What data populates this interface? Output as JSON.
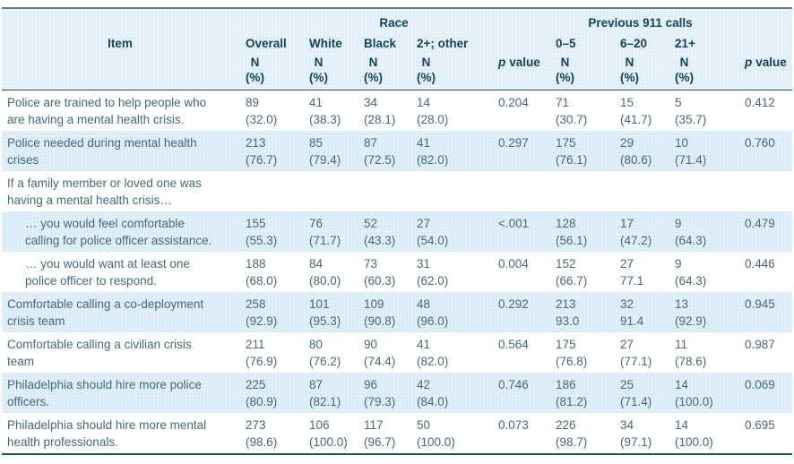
{
  "table": {
    "header": {
      "race_group": "Race",
      "calls_group": "Previous 911 calls",
      "item": "Item",
      "overall": "Overall",
      "white": "White",
      "black": "Black",
      "other": "2+; other",
      "calls_0_5": "0–5",
      "calls_6_20": "6–20",
      "calls_21": "21+",
      "n": "N",
      "pct": "(%)",
      "p_italic": "p",
      "p_word": "value"
    },
    "rows": [
      {
        "item": "Police are trained to help people who\nare having a mental health crisis.",
        "indent": false,
        "cells": [
          "89\n(32.0)",
          "41\n(38.3)",
          "34\n(28.1)",
          "14\n(28.0)",
          "0.204",
          "71\n(30.7)",
          "15\n(41.7)",
          "5\n(35.7)",
          "0.412"
        ]
      },
      {
        "item": "Police needed during mental health\ncrises",
        "indent": false,
        "cells": [
          "213\n(76.7)",
          "85\n(79.4)",
          "87\n(72.5)",
          "41\n(82.0)",
          "0.297",
          "175\n(76.1)",
          "29\n(80.6)",
          "10\n(71.4)",
          "0.760"
        ]
      },
      {
        "item": "If a family member or loved one was\nhaving a mental health crisis…",
        "indent": false,
        "cells": [
          "",
          "",
          "",
          "",
          "",
          "",
          "",
          "",
          ""
        ]
      },
      {
        "item": "… you would feel comfortable\ncalling for police officer assistance.",
        "indent": true,
        "cells": [
          "155\n(55.3)",
          "76\n(71.7)",
          "52\n(43.3)",
          "27\n(54.0)",
          "<.001",
          "128\n(56.1)",
          "17\n(47.2)",
          "9\n(64.3)",
          "0.479"
        ]
      },
      {
        "item": "… you would want at least one\npolice officer to respond.",
        "indent": true,
        "cells": [
          "188\n(68.0)",
          "84\n(80.0)",
          "73\n(60.3)",
          "31\n(62.0)",
          "0.004",
          "152\n(66.7)",
          "27\n77.1",
          "9\n(64.3)",
          "0.446"
        ]
      },
      {
        "item": "Comfortable calling a co-deployment\ncrisis team",
        "indent": false,
        "cells": [
          "258\n(92.9)",
          "101\n(95.3)",
          "109\n(90.8)",
          "48\n(96.0)",
          "0.292",
          "213\n93.0",
          "32\n91.4",
          "13\n(92.9)",
          "0.945"
        ]
      },
      {
        "item": "Comfortable calling a civilian crisis\nteam",
        "indent": false,
        "cells": [
          "211\n(76.9)",
          "80\n(76.2)",
          "90\n(74.4)",
          "41\n(82.0)",
          "0.564",
          "175\n(76.8)",
          "27\n(77.1)",
          "11\n(78.6)",
          "0.987"
        ]
      },
      {
        "item": "Philadelphia should hire more police\nofficers.",
        "indent": false,
        "cells": [
          "225\n(80.9)",
          "87\n(82.1)",
          "96\n(79.3)",
          "42\n(84.0)",
          "0.746",
          "186\n(81.2)",
          "25\n(71.4)",
          "14\n(100.0)",
          "0.069"
        ]
      },
      {
        "item": "Philadelphia should hire more mental\nhealth professionals.",
        "indent": false,
        "cells": [
          "273\n(98.6)",
          "106\n(100.0)",
          "117\n(96.7)",
          "50\n(100.0)",
          "0.073",
          "226\n(98.7)",
          "34\n(97.1)",
          "14\n(100.0)",
          "0.695"
        ]
      }
    ]
  }
}
